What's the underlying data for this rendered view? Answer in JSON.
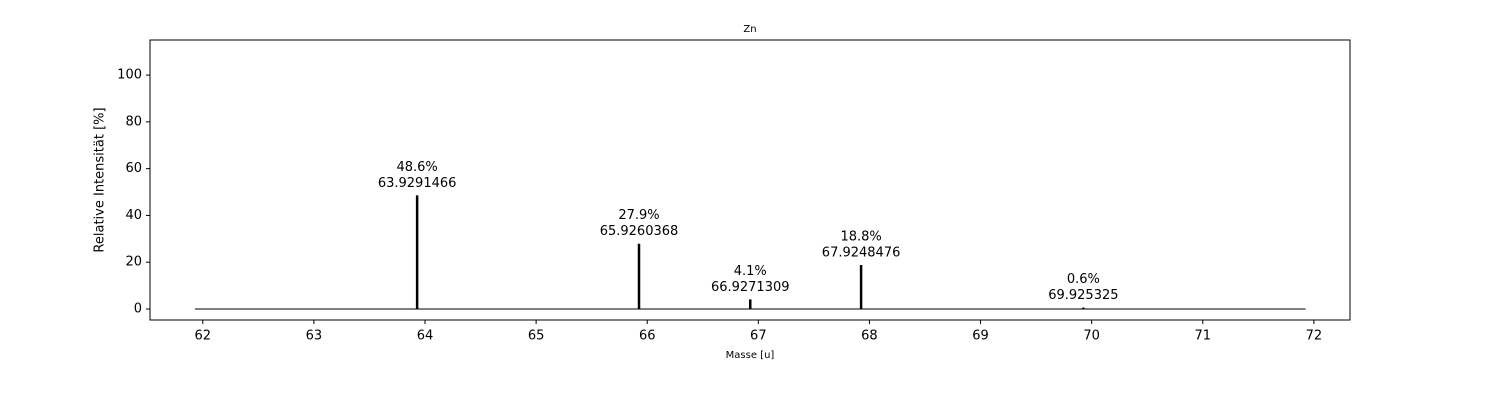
{
  "chart_data": {
    "type": "stem",
    "title": "Zn",
    "x_label": "Masse [u]",
    "y_label": "Relative Intensität [%]",
    "x": [
      63.9291466,
      65.9260368,
      66.9271309,
      67.9248476,
      69.925325
    ],
    "values": [
      48.6,
      27.9,
      4.1,
      18.8,
      0.6
    ],
    "value_labels": [
      "48.6%",
      "27.9%",
      "4.1%",
      "18.8%",
      "0.6%"
    ],
    "color": "#000000",
    "xlim": [
      61.525,
      72.325
    ],
    "xticks": [
      62,
      63,
      64,
      65,
      66,
      67,
      68,
      69,
      70,
      71,
      72
    ],
    "ylim": [
      -4.7,
      115
    ],
    "yticks": [
      0,
      20,
      40,
      60,
      80,
      100
    ]
  }
}
